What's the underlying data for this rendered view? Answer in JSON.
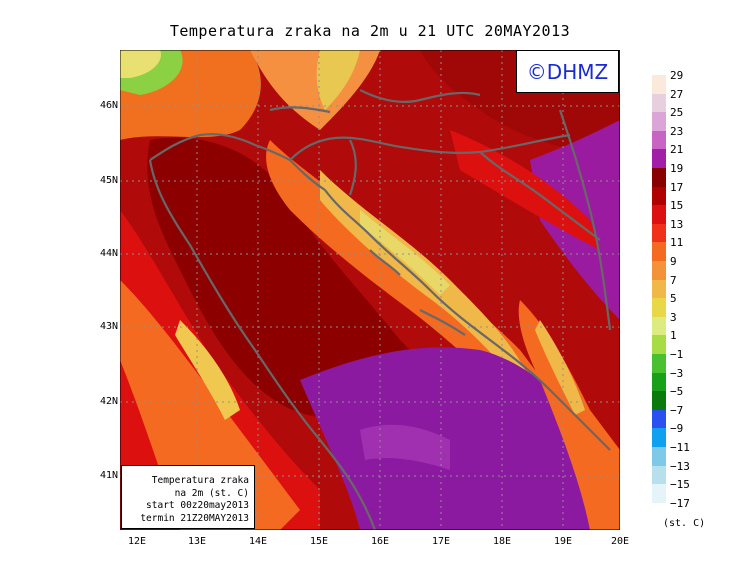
{
  "title": "Temperatura zraka na 2m u 21 UTC 20MAY2013",
  "logo_text": "©DHMZ",
  "info_box": {
    "line1": "Temperatura zraka",
    "line2": "na 2m (st. C)",
    "line3": "start 00z20may2013",
    "line4": "termin 21Z20MAY2013"
  },
  "lat_ticks": [
    "46N",
    "45N",
    "44N",
    "43N",
    "42N",
    "41N"
  ],
  "lon_ticks": [
    "12E",
    "13E",
    "14E",
    "15E",
    "16E",
    "17E",
    "18E",
    "19E",
    "20E"
  ],
  "colorbar": {
    "labels": [
      "29",
      "27",
      "25",
      "23",
      "21",
      "19",
      "17",
      "15",
      "13",
      "11",
      "9",
      "7",
      "5",
      "3",
      "1",
      "−1",
      "−3",
      "−5",
      "−7",
      "−9",
      "−11",
      "−13",
      "−15",
      "−17"
    ],
    "colors": [
      "#fbeadc",
      "#e8cfe0",
      "#dba5d8",
      "#c864c4",
      "#a01ea8",
      "#880000",
      "#b00000",
      "#dd1010",
      "#f03018",
      "#f46a20",
      "#f4923a",
      "#f0b848",
      "#e8d848",
      "#dcec80",
      "#a8dc44",
      "#48c030",
      "#18a018",
      "#0a7a0a",
      "#2a50f0",
      "#10a0f0",
      "#7ec8e8",
      "#b8e0ec",
      "#e4f4f8",
      "#ffffff"
    ],
    "unit": "(st. C)"
  },
  "colors": {
    "coastline": "#686868",
    "background_field": "#b00a0a"
  }
}
